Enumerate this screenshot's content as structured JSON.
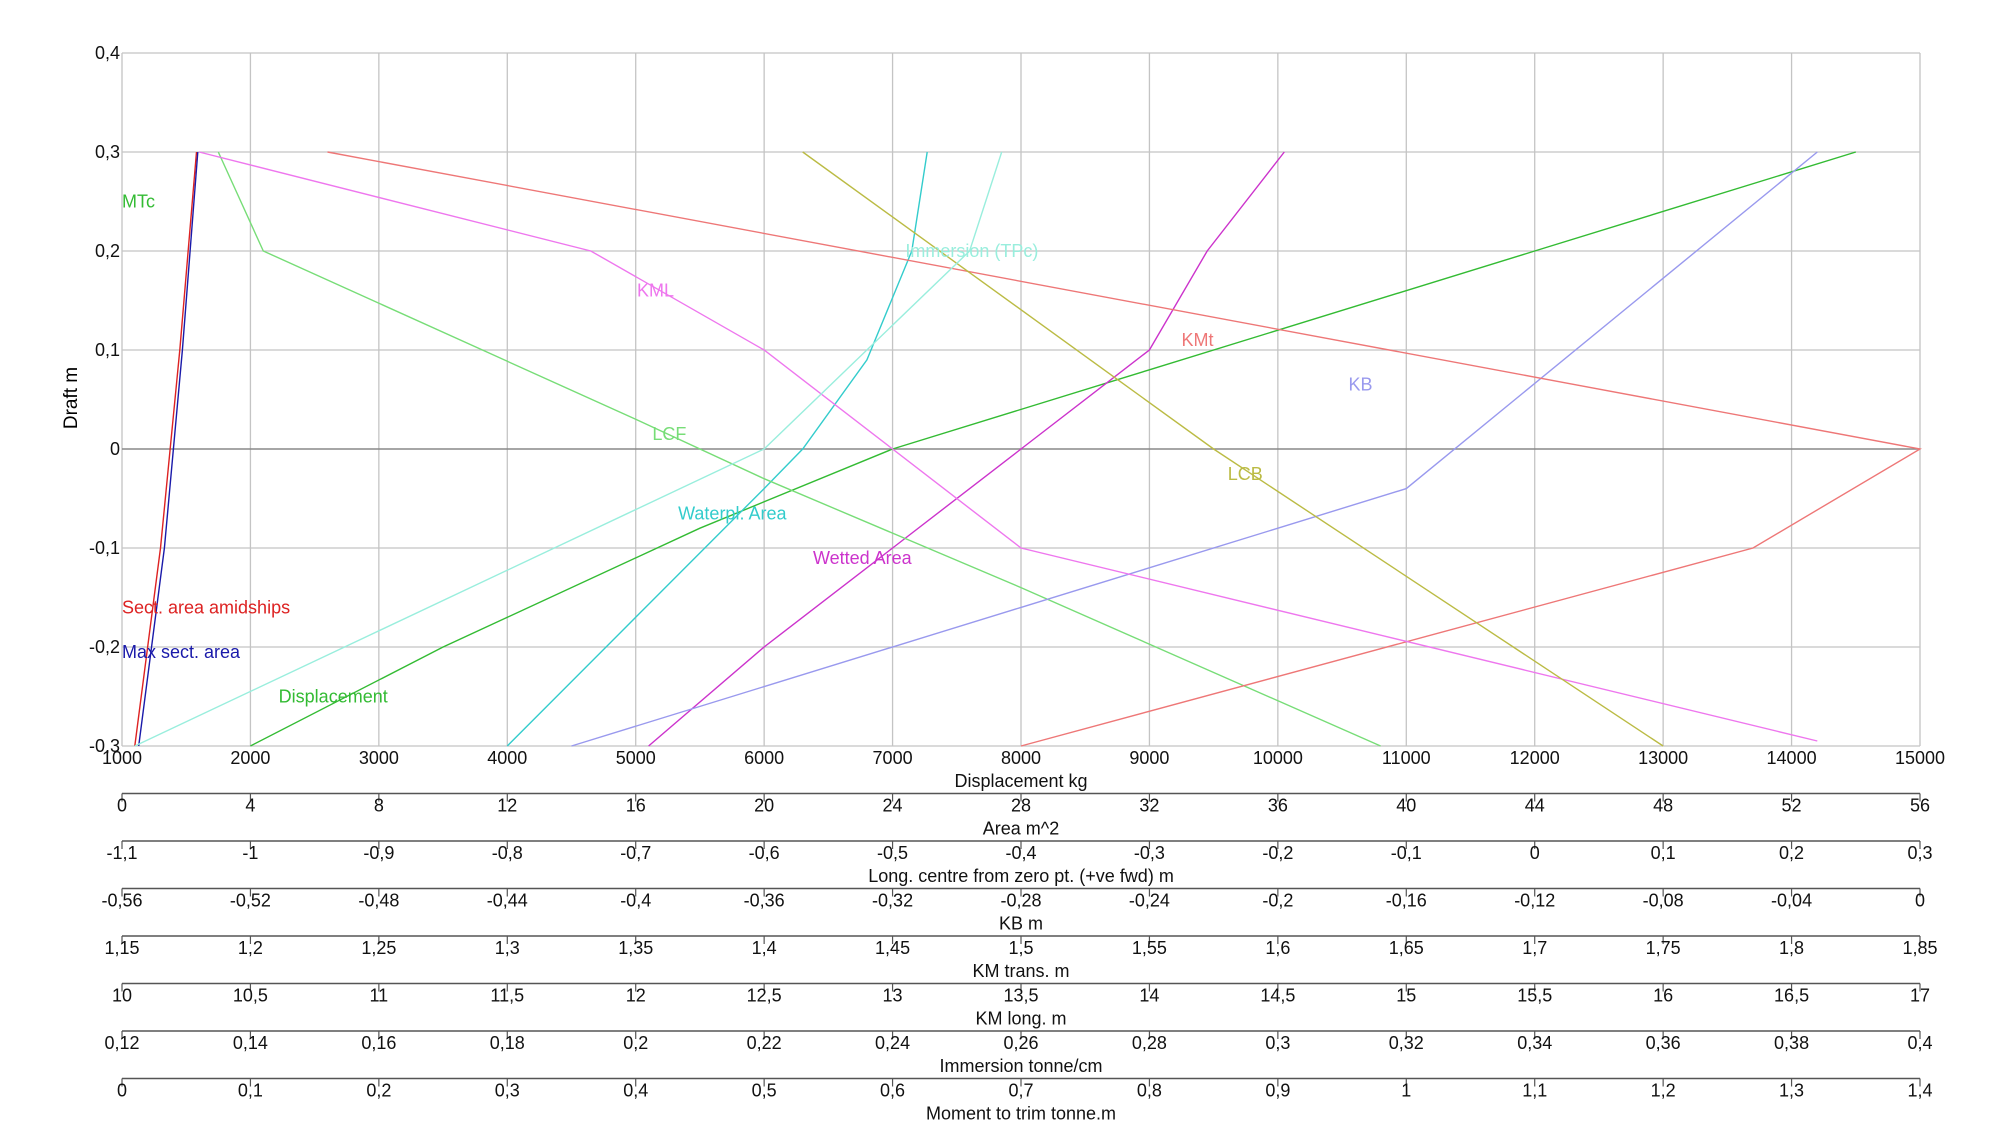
{
  "chart_data": {
    "type": "line",
    "title": "",
    "ylabel": "Draft  m",
    "ylim": [
      -0.3,
      0.4
    ],
    "y_ticks": [
      "0,4",
      "0,3",
      "0,2",
      "0,1",
      "0",
      "-0,1",
      "-0,2",
      "-0,3"
    ],
    "grid": true,
    "axes": [
      {
        "label": "Displacement  kg",
        "ticks": [
          "1000",
          "2000",
          "3000",
          "4000",
          "5000",
          "6000",
          "7000",
          "8000",
          "9000",
          "10000",
          "11000",
          "12000",
          "13000",
          "14000",
          "15000"
        ]
      },
      {
        "label": "Area  m^2",
        "ticks": [
          "0",
          "4",
          "8",
          "12",
          "16",
          "20",
          "24",
          "28",
          "32",
          "36",
          "40",
          "44",
          "48",
          "52",
          "56"
        ]
      },
      {
        "label": "Long. centre  from zero pt. (+ve fwd) m",
        "ticks": [
          "-1,1",
          "-1",
          "-0,9",
          "-0,8",
          "-0,7",
          "-0,6",
          "-0,5",
          "-0,4",
          "-0,3",
          "-0,2",
          "-0,1",
          "0",
          "0,1",
          "0,2",
          "0,3"
        ]
      },
      {
        "label": "KB  m",
        "ticks": [
          "-0,56",
          "-0,52",
          "-0,48",
          "-0,44",
          "-0,4",
          "-0,36",
          "-0,32",
          "-0,28",
          "-0,24",
          "-0,2",
          "-0,16",
          "-0,12",
          "-0,08",
          "-0,04",
          "0"
        ]
      },
      {
        "label": "KM trans.  m",
        "ticks": [
          "1,15",
          "1,2",
          "1,25",
          "1,3",
          "1,35",
          "1,4",
          "1,45",
          "1,5",
          "1,55",
          "1,6",
          "1,65",
          "1,7",
          "1,75",
          "1,8",
          "1,85"
        ]
      },
      {
        "label": "KM long.  m",
        "ticks": [
          "10",
          "10,5",
          "11",
          "11,5",
          "12",
          "12,5",
          "13",
          "13,5",
          "14",
          "14,5",
          "15",
          "15,5",
          "16",
          "16,5",
          "17"
        ]
      },
      {
        "label": "Immersion  tonne/cm",
        "ticks": [
          "0,12",
          "0,14",
          "0,16",
          "0,18",
          "0,2",
          "0,22",
          "0,24",
          "0,26",
          "0,28",
          "0,3",
          "0,32",
          "0,34",
          "0,36",
          "0,38",
          "0,4"
        ]
      },
      {
        "label": "Moment to trim  tonne.m",
        "ticks": [
          "0",
          "0,1",
          "0,2",
          "0,3",
          "0,4",
          "0,5",
          "0,6",
          "0,7",
          "0,8",
          "0,9",
          "1",
          "1,1",
          "1,2",
          "1,3",
          "1,4"
        ]
      }
    ],
    "series": [
      {
        "name": "Displacement",
        "color": "#33bb33",
        "label_at": [
          2220,
          -0.25
        ],
        "points": [
          [
            2000,
            -0.3
          ],
          [
            3500,
            -0.2
          ],
          [
            5500,
            -0.08
          ],
          [
            7000,
            0
          ],
          [
            9000,
            0.08
          ],
          [
            12000,
            0.2
          ],
          [
            14500,
            0.3
          ]
        ]
      },
      {
        "name": "Sect. area amidships",
        "color": "#dd2222",
        "label_at": [
          1000,
          -0.16
        ],
        "points": [
          [
            1100,
            -0.3
          ],
          [
            1300,
            -0.1
          ],
          [
            1450,
            0.1
          ],
          [
            1580,
            0.3
          ]
        ]
      },
      {
        "name": "Max sect. area",
        "color": "#1a1aaa",
        "label_at": [
          1000,
          -0.205
        ],
        "points": [
          [
            1130,
            -0.3
          ],
          [
            1330,
            -0.1
          ],
          [
            1470,
            0.1
          ],
          [
            1590,
            0.3
          ]
        ]
      },
      {
        "name": "Waterpl. Area",
        "color": "#33cccc",
        "label_at": [
          5330,
          -0.065
        ],
        "points": [
          [
            4000,
            -0.3
          ],
          [
            5000,
            -0.17
          ],
          [
            6000,
            -0.04
          ],
          [
            6300,
            0
          ],
          [
            6800,
            0.09
          ],
          [
            7150,
            0.2
          ],
          [
            7270,
            0.3
          ]
        ]
      },
      {
        "name": "Wetted Area",
        "color": "#cc33cc",
        "label_at": [
          6380,
          -0.11
        ],
        "points": [
          [
            5100,
            -0.3
          ],
          [
            6000,
            -0.2
          ],
          [
            7000,
            -0.1
          ],
          [
            8000,
            0
          ],
          [
            9000,
            0.1
          ],
          [
            9450,
            0.2
          ],
          [
            10050,
            0.3
          ]
        ]
      },
      {
        "name": "LCF",
        "color": "#77dd77",
        "label_at": [
          5130,
          0.015
        ],
        "points": [
          [
            10800,
            -0.3
          ],
          [
            8000,
            -0.14
          ],
          [
            6000,
            -0.03
          ],
          [
            5000,
            0.03
          ],
          [
            2100,
            0.2
          ],
          [
            1750,
            0.3
          ]
        ]
      },
      {
        "name": "KB",
        "color": "#9999ee",
        "label_at": [
          10550,
          0.065
        ],
        "points": [
          [
            4500,
            -0.3
          ],
          [
            8000,
            -0.16
          ],
          [
            11000,
            -0.04
          ],
          [
            14200,
            0.3
          ]
        ]
      },
      {
        "name": "KMt",
        "color": "#ee7777",
        "label_at": [
          9250,
          0.11
        ],
        "points": [
          [
            8000,
            -0.3
          ],
          [
            13700,
            -0.1
          ],
          [
            15000,
            0
          ],
          [
            2600,
            0.3
          ]
        ]
      },
      {
        "name": "KML",
        "color": "#ee77ee",
        "label_at": [
          5010,
          0.16
        ],
        "points": [
          [
            14200,
            -0.295
          ],
          [
            8000,
            -0.1
          ],
          [
            6000,
            0.1
          ],
          [
            4650,
            0.2
          ],
          [
            1600,
            0.3
          ]
        ]
      },
      {
        "name": "LCB",
        "color": "#bbbb44",
        "label_at": [
          9610,
          -0.025
        ],
        "points": [
          [
            13000,
            -0.3
          ],
          [
            9500,
            0
          ],
          [
            6300,
            0.3
          ]
        ]
      },
      {
        "name": "Immersion (TPc)",
        "color": "#99eedd",
        "label_at": [
          7100,
          0.2
        ],
        "points": [
          [
            1100,
            -0.3
          ],
          [
            6000,
            0
          ],
          [
            7600,
            0.2
          ],
          [
            7850,
            0.3
          ]
        ]
      },
      {
        "name": "MTc",
        "color": "#33bb33",
        "label_at": [
          1000,
          0.25
        ],
        "points": []
      }
    ]
  }
}
